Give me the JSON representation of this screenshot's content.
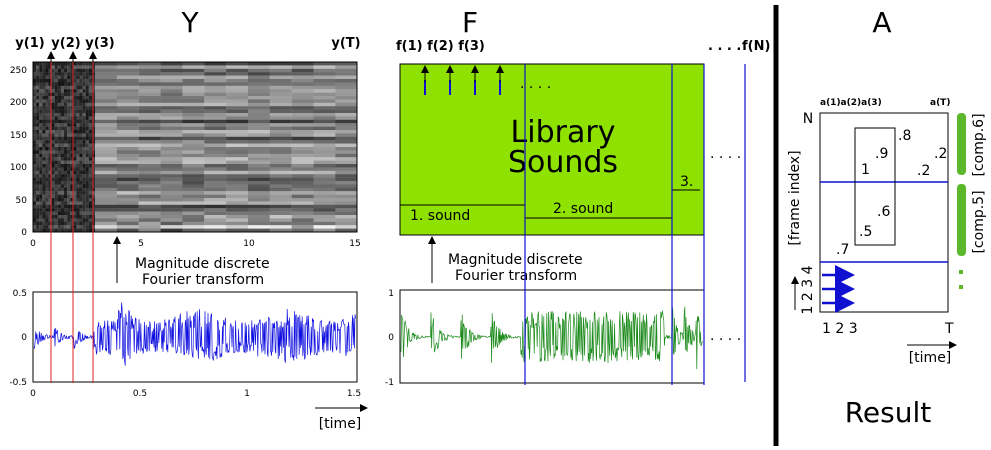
{
  "panels": [
    {
      "title": "Y",
      "column_labels": [
        "y(1)",
        "y(2)",
        "y(3)",
        "y(T)"
      ],
      "spectrogram": {
        "yticks": [
          "0",
          "50",
          "100",
          "150",
          "200",
          "250"
        ],
        "xticks": [
          "0",
          "5",
          "10",
          "15"
        ]
      },
      "transform_label": [
        "Magnitude discrete",
        "Fourier transform"
      ],
      "waveform": {
        "yticks": [
          "0.5",
          "0",
          "-0.5"
        ],
        "xticks": [
          "0",
          "0.5",
          "1",
          "1.5"
        ]
      },
      "time_label": "[time]"
    },
    {
      "title": "F",
      "frame_labels": "f(1) f(2) f(3)",
      "more_frames": ". . . .",
      "last_frame": "f(N)",
      "library": [
        "Library",
        "Sounds"
      ],
      "sounds": [
        "1. sound",
        "2. sound",
        "3."
      ],
      "inner_dots": ". . . .",
      "side_dots": ". . . .",
      "transform_label": [
        "Magnitude discrete",
        "Fourier transform"
      ],
      "waveform": {
        "yticks": [
          "1",
          "0",
          "-1"
        ]
      },
      "wave_dots": ". . . ."
    },
    {
      "title": "A",
      "column_labels": "a(1)a(2)a(3)",
      "last_column": "a(T)",
      "row_top": "N",
      "row_axis": "[frame index]",
      "weights": [
        ".8",
        ".9",
        "1",
        ".2",
        ".2",
        ".6",
        ".5",
        ".7"
      ],
      "components": [
        "[comp.6]",
        "[comp.5]"
      ],
      "row_numbers": "1 2 3 4",
      "col_numbers": "1 2 3",
      "col_last": "T",
      "time_label": "[time]",
      "result": "Result"
    }
  ]
}
